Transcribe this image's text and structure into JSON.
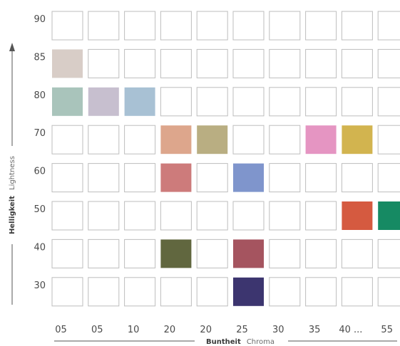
{
  "chart_data": {
    "type": "heatmap",
    "title": "",
    "x_ticks": [
      "05",
      "05",
      "10",
      "20",
      "20",
      "25",
      "30",
      "35",
      "40 ...",
      "55"
    ],
    "y_ticks": [
      90,
      85,
      80,
      70,
      60,
      50,
      40,
      30
    ],
    "xlabel": {
      "strong": "Buntheit",
      "light": "Chroma"
    },
    "ylabel": {
      "strong": "Helligkeit",
      "light": "Lightness"
    },
    "filled_cells": [
      {
        "lightness": 85,
        "col": 0,
        "chroma": "05",
        "color": "#d8cdc7"
      },
      {
        "lightness": 80,
        "col": 0,
        "chroma": "05",
        "color": "#a9c4bb"
      },
      {
        "lightness": 80,
        "col": 1,
        "chroma": "05",
        "color": "#c7bfcf"
      },
      {
        "lightness": 80,
        "col": 2,
        "chroma": "10",
        "color": "#a8c1d4"
      },
      {
        "lightness": 70,
        "col": 3,
        "chroma": "20",
        "color": "#dda68c"
      },
      {
        "lightness": 70,
        "col": 4,
        "chroma": "20",
        "color": "#b9ae82"
      },
      {
        "lightness": 70,
        "col": 7,
        "chroma": "35",
        "color": "#e595c2"
      },
      {
        "lightness": 70,
        "col": 8,
        "chroma": "40 ...",
        "color": "#d2b44f"
      },
      {
        "lightness": 60,
        "col": 3,
        "chroma": "20",
        "color": "#cd7b7b"
      },
      {
        "lightness": 60,
        "col": 5,
        "chroma": "25",
        "color": "#7f95cc"
      },
      {
        "lightness": 50,
        "col": 8,
        "chroma": "40 ...",
        "color": "#d55a40"
      },
      {
        "lightness": 50,
        "col": 9,
        "chroma": "55",
        "color": "#168a63"
      },
      {
        "lightness": 40,
        "col": 3,
        "chroma": "20",
        "color": "#61673f"
      },
      {
        "lightness": 40,
        "col": 5,
        "chroma": "25",
        "color": "#a5545f"
      },
      {
        "lightness": 30,
        "col": 5,
        "chroma": "25",
        "color": "#3c356f"
      }
    ],
    "grid": true
  }
}
